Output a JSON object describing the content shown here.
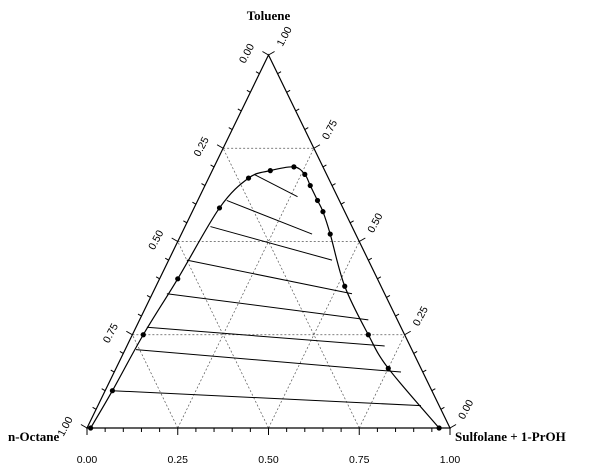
{
  "chart_data": {
    "type": "scatter",
    "subtype": "ternary",
    "components": {
      "top": "Toluene",
      "left": "n-Octane",
      "right": "Sulfolane + 1-PrOH"
    },
    "tick_labels": [
      "0.00",
      "0.25",
      "0.50",
      "0.75",
      "1.00"
    ],
    "grid": true,
    "binodal_points": [
      {
        "toluene": 0.0,
        "solvent": 0.01
      },
      {
        "toluene": 0.1,
        "solvent": 0.02
      },
      {
        "toluene": 0.25,
        "solvent": 0.03
      },
      {
        "toluene": 0.4,
        "solvent": 0.05
      },
      {
        "toluene": 0.59,
        "solvent": 0.07
      },
      {
        "toluene": 0.67,
        "solvent": 0.11
      },
      {
        "toluene": 0.69,
        "solvent": 0.16
      },
      {
        "toluene": 0.7,
        "solvent": 0.22
      },
      {
        "toluene": 0.68,
        "solvent": 0.26
      },
      {
        "toluene": 0.65,
        "solvent": 0.29
      },
      {
        "toluene": 0.61,
        "solvent": 0.33
      },
      {
        "toluene": 0.58,
        "solvent": 0.36
      },
      {
        "toluene": 0.52,
        "solvent": 0.41
      },
      {
        "toluene": 0.38,
        "solvent": 0.52
      },
      {
        "toluene": 0.25,
        "solvent": 0.65
      },
      {
        "toluene": 0.16,
        "solvent": 0.75
      },
      {
        "toluene": 0.0,
        "solvent": 0.97
      }
    ],
    "tie_lines": [
      {
        "raffinate": {
          "toluene": 0.1,
          "solvent": 0.02
        },
        "extract": {
          "toluene": 0.06,
          "solvent": 0.89
        }
      },
      {
        "raffinate": {
          "toluene": 0.21,
          "solvent": 0.03
        },
        "extract": {
          "toluene": 0.15,
          "solvent": 0.79
        }
      },
      {
        "raffinate": {
          "toluene": 0.27,
          "solvent": 0.03
        },
        "extract": {
          "toluene": 0.22,
          "solvent": 0.71
        }
      },
      {
        "raffinate": {
          "toluene": 0.36,
          "solvent": 0.04
        },
        "extract": {
          "toluene": 0.29,
          "solvent": 0.63
        }
      },
      {
        "raffinate": {
          "toluene": 0.45,
          "solvent": 0.05
        },
        "extract": {
          "toluene": 0.36,
          "solvent": 0.55
        }
      },
      {
        "raffinate": {
          "toluene": 0.54,
          "solvent": 0.07
        },
        "extract": {
          "toluene": 0.45,
          "solvent": 0.45
        }
      },
      {
        "raffinate": {
          "toluene": 0.61,
          "solvent": 0.08
        },
        "extract": {
          "toluene": 0.52,
          "solvent": 0.36
        }
      },
      {
        "raffinate": {
          "toluene": 0.68,
          "solvent": 0.12
        },
        "extract": {
          "toluene": 0.62,
          "solvent": 0.27
        }
      }
    ]
  }
}
